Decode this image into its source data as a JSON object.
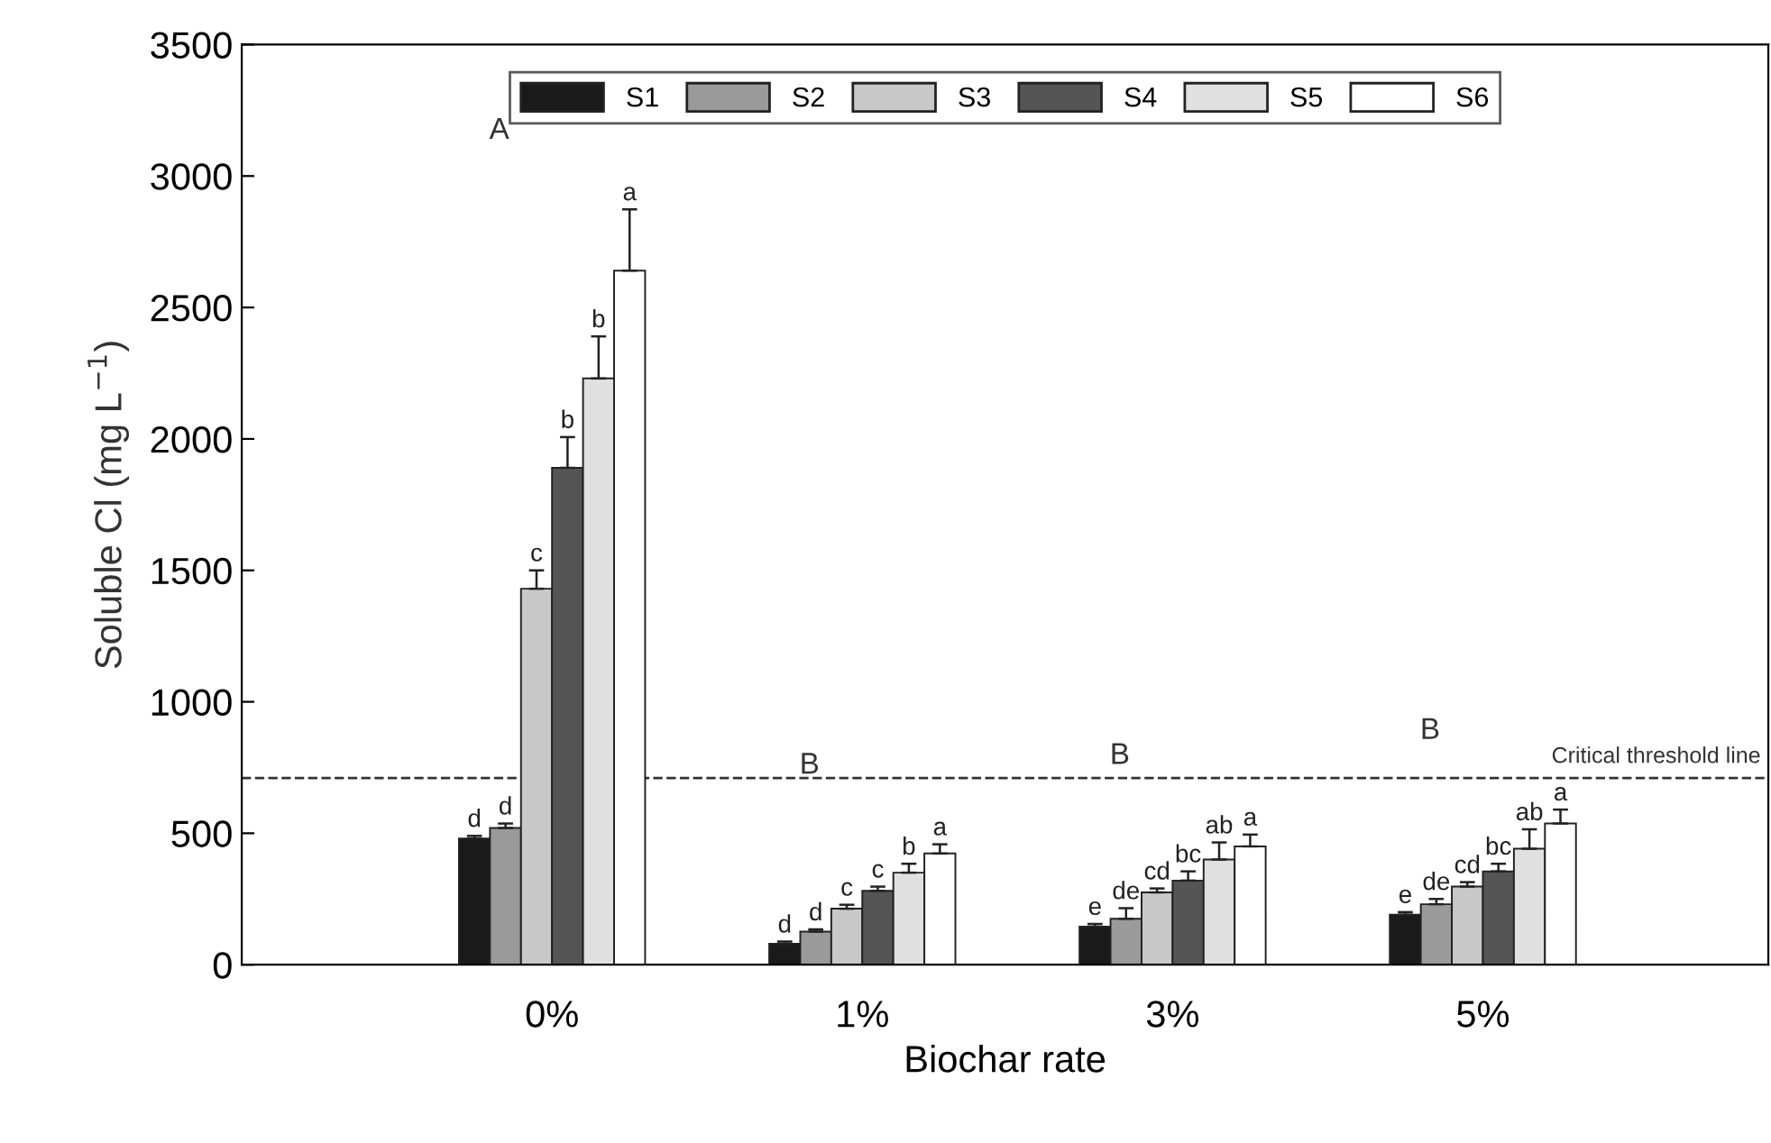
{
  "chart_data": {
    "type": "bar",
    "xlabel": "Biochar rate",
    "ylabel": "Soluble Cl (mg L$^{−1}$)",
    "categories": [
      "0%",
      "1%",
      "3%",
      "5%"
    ],
    "ylim": [
      0,
      3500
    ],
    "yticks": [
      0,
      500,
      1000,
      1500,
      2000,
      2500,
      3000,
      3500
    ],
    "grid": false,
    "legend": "top",
    "series": [
      {
        "name": "S1",
        "color": "#1a1a1a",
        "values": [
          480,
          80,
          145,
          190
        ],
        "errors": [
          10,
          8,
          10,
          10
        ],
        "value_labels": [
          "d",
          "d",
          "e",
          "e"
        ]
      },
      {
        "name": "S2",
        "color": "#9a9a9a",
        "values": [
          520,
          126,
          175,
          230
        ],
        "errors": [
          17,
          8,
          40,
          20
        ],
        "value_labels": [
          "d",
          "d",
          "de",
          "de"
        ]
      },
      {
        "name": "S3",
        "color": "#c8c8c8",
        "values": [
          1430,
          213,
          275,
          297
        ],
        "errors": [
          70,
          15,
          15,
          17
        ],
        "value_labels": [
          "c",
          "c",
          "cd",
          "cd"
        ]
      },
      {
        "name": "S4",
        "color": "#555555",
        "values": [
          1890,
          281,
          320,
          355
        ],
        "errors": [
          117,
          16,
          35,
          29
        ],
        "value_labels": [
          "b",
          "c",
          "bc",
          "bc"
        ]
      },
      {
        "name": "S5",
        "color": "#e0e0e0",
        "values": [
          2230,
          350,
          400,
          441
        ],
        "errors": [
          160,
          34,
          65,
          74
        ],
        "value_labels": [
          "b",
          "b",
          "ab",
          "ab"
        ]
      },
      {
        "name": "S6",
        "color": "#ffffff",
        "values": [
          2640,
          423,
          450,
          537
        ],
        "errors": [
          233,
          35,
          45,
          53
        ],
        "value_labels": [
          "a",
          "a",
          "a",
          "a"
        ]
      }
    ],
    "ref_lines": [
      {
        "axis": "y",
        "value": 710,
        "label": "Critical threshold line",
        "line_style": "dashed",
        "color": "#333333"
      }
    ],
    "annotations": [
      "A",
      "B",
      "B",
      "B"
    ]
  }
}
